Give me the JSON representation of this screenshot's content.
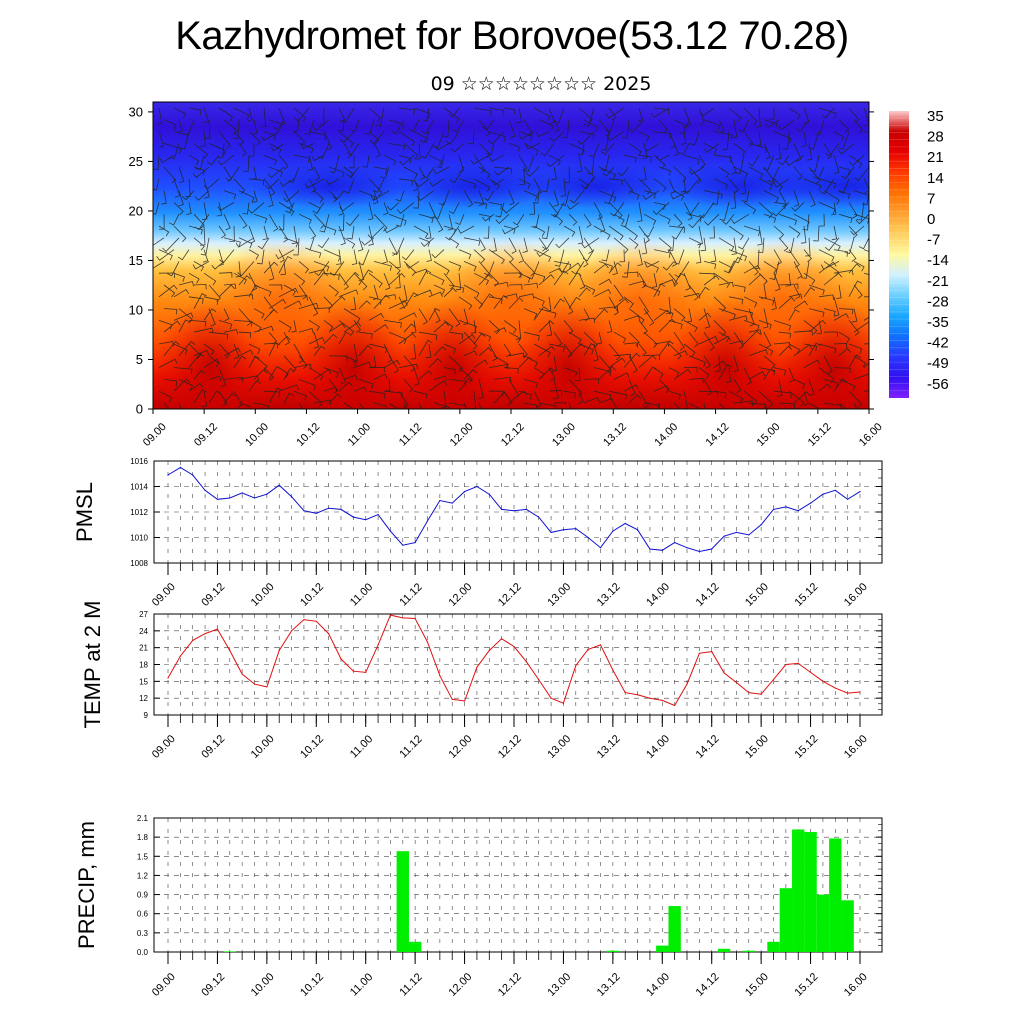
{
  "header": {
    "title": "Kazhydromet for Borovoe(53.12 70.28)",
    "subtitle": "09 ☆☆☆☆☆☆☆☆ 2025"
  },
  "colors": {
    "pmsl_line": "#1010d0",
    "temp_line": "#e01010",
    "precip_bar": "#00ee00",
    "grid": "#555555"
  },
  "chart_data": [
    {
      "type": "heatmap",
      "name": "cross-section",
      "title": "",
      "ylim": [
        0,
        31
      ],
      "yticks": [
        "0",
        "5",
        "10",
        "15",
        "20",
        "25",
        "30"
      ],
      "xticks": [
        "09.00",
        "09.12",
        "10.00",
        "10.12",
        "11.00",
        "11.12",
        "12.00",
        "12.12",
        "13.00",
        "13.12",
        "14.00",
        "14.12",
        "15.00",
        "15.12",
        "16.00"
      ],
      "colorbar_labels": [
        "35",
        "28",
        "21",
        "14",
        "7",
        "0",
        "-7",
        "-14",
        "-21",
        "-28",
        "-35",
        "-42",
        "-49",
        "-56"
      ],
      "colorscale": [
        "#ffcccc",
        "#c80000",
        "#e60000",
        "#ff3a00",
        "#ff7000",
        "#ffa030",
        "#ffd060",
        "#fff9a0",
        "#d0f0ff",
        "#6cd0ff",
        "#18a8ff",
        "#1070ff",
        "#2838ff",
        "#3010f0",
        "#8020ff"
      ],
      "surface_temp_profile": [
        24,
        25,
        26,
        27,
        27,
        26,
        24,
        25,
        25,
        26,
        25,
        24,
        22,
        22,
        24,
        25,
        23,
        21,
        23,
        24
      ],
      "wind_barbs": true
    },
    {
      "type": "line",
      "name": "pmsl",
      "ylabel": "PMSL",
      "ylim": [
        1008,
        1016
      ],
      "yticks": [
        "1008",
        "1010",
        "1012",
        "1014",
        "1016"
      ],
      "xticks": [
        "09.00",
        "09.12",
        "10.00",
        "10.12",
        "11.00",
        "11.12",
        "12.00",
        "12.12",
        "13.00",
        "13.12",
        "14.00",
        "14.12",
        "15.00",
        "15.12",
        "16.00"
      ],
      "step_hours": 3,
      "values": [
        1014.9,
        1015.5,
        1014.9,
        1013.7,
        1013.0,
        1013.1,
        1013.5,
        1013.1,
        1013.4,
        1014.1,
        1013.2,
        1012.1,
        1011.9,
        1012.3,
        1012.2,
        1011.6,
        1011.4,
        1011.8,
        1010.5,
        1009.4,
        1009.6,
        1011.3,
        1012.9,
        1012.7,
        1013.6,
        1014.0,
        1013.4,
        1012.2,
        1012.1,
        1012.2,
        1011.6,
        1010.4,
        1010.6,
        1010.7,
        1010.0,
        1009.2,
        1010.5,
        1011.1,
        1010.6,
        1009.1,
        1009.0,
        1009.6,
        1009.2,
        1008.9,
        1009.1,
        1010.1,
        1010.4,
        1010.2,
        1011.0,
        1012.2,
        1012.4,
        1012.1,
        1012.7,
        1013.4,
        1013.7,
        1013.0,
        1013.6
      ]
    },
    {
      "type": "line",
      "name": "temp",
      "ylabel": "TEMP at 2 M",
      "ylim": [
        9,
        27
      ],
      "yticks": [
        "9",
        "12",
        "15",
        "18",
        "21",
        "24",
        "27"
      ],
      "xticks": [
        "09.00",
        "09.12",
        "10.00",
        "10.12",
        "11.00",
        "11.12",
        "12.00",
        "12.12",
        "13.00",
        "13.12",
        "14.00",
        "14.12",
        "15.00",
        "15.12",
        "16.00"
      ],
      "step_hours": 3,
      "values": [
        15.6,
        19.5,
        22.3,
        23.5,
        24.3,
        20.5,
        16.3,
        14.5,
        14.0,
        20.5,
        24.0,
        26.0,
        25.7,
        23.5,
        19.0,
        16.8,
        16.6,
        21.5,
        26.8,
        26.3,
        26.2,
        22.0,
        16.0,
        11.8,
        11.5,
        17.5,
        20.5,
        22.6,
        21.2,
        18.5,
        15.3,
        12.0,
        11.1,
        17.8,
        20.7,
        21.5,
        17.0,
        13.0,
        12.6,
        12.0,
        11.6,
        10.7,
        14.5,
        20.0,
        20.3,
        16.5,
        14.8,
        13.0,
        12.7,
        15.3,
        18.0,
        18.2,
        16.6,
        15.0,
        13.8,
        12.9,
        13.1
      ]
    },
    {
      "type": "bar",
      "name": "precip",
      "ylabel": "PRECIP, mm",
      "ylim": [
        0,
        2.1
      ],
      "yticks": [
        "0.0",
        "0.3",
        "0.6",
        "0.9",
        "1.2",
        "1.5",
        "1.8",
        "2.1"
      ],
      "xticks": [
        "09.00",
        "09.12",
        "10.00",
        "10.12",
        "11.00",
        "11.12",
        "12.00",
        "12.12",
        "13.00",
        "13.12",
        "14.00",
        "14.12",
        "15.00",
        "15.12",
        "16.00"
      ],
      "step_hours": 3,
      "values": [
        0,
        0,
        0,
        0,
        0,
        0.01,
        0,
        0,
        0,
        0,
        0,
        0,
        0,
        0,
        0,
        0,
        0,
        0,
        0,
        1.58,
        0.16,
        0,
        0,
        0,
        0,
        0,
        0,
        0,
        0,
        0,
        0,
        0,
        0,
        0,
        0,
        0,
        0.02,
        0,
        0,
        0,
        0.1,
        0.72,
        0,
        0,
        0,
        0.05,
        0,
        0.02,
        0,
        0.16,
        1.0,
        1.92,
        1.88,
        0.9,
        1.78,
        0.81,
        0
      ]
    }
  ]
}
